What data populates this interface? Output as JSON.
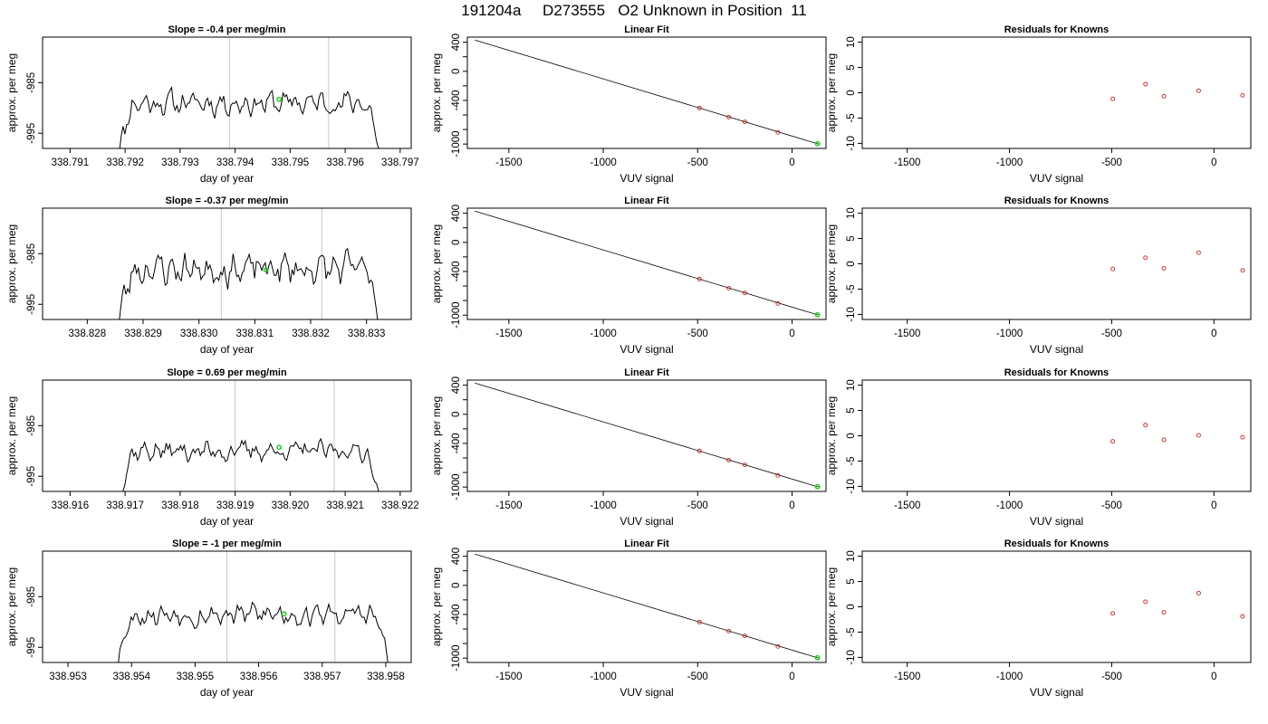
{
  "title": "191204a     D273555   O2 Unknown in Position  11",
  "colors": {
    "trace": "#000000",
    "marker_unknown": "#22cc22",
    "marker_known": "#cc2222",
    "vline": "#c8c8c8",
    "frame": "#000000"
  },
  "chart_data": [
    {
      "type": "line",
      "panel": "time-series",
      "row": 1,
      "title": "Slope =  -0.4  per meg/min",
      "xlabel": "day of year",
      "ylabel": "approx. per meg",
      "xlim": [
        338.7905,
        338.7972
      ],
      "ylim": [
        -998,
        -976
      ],
      "xticks": [
        "338.791",
        "338.792",
        "338.793",
        "338.794",
        "338.795",
        "338.796",
        "338.797"
      ],
      "xtick_values": [
        338.791,
        338.792,
        338.793,
        338.794,
        338.795,
        338.796,
        338.797
      ],
      "yticks": [
        "-985",
        "-995"
      ],
      "ytick_values": [
        -985,
        -995
      ],
      "vlines": [
        338.7939,
        338.7957
      ],
      "start": 338.7918,
      "end": 338.7967,
      "mean": -989.0,
      "amp": 1.6,
      "seed": 11,
      "marker": [
        338.7948,
        -988.3
      ]
    },
    {
      "type": "scatter",
      "panel": "linear-fit",
      "row": 1,
      "title": "Linear Fit",
      "xlabel": "VUV signal",
      "ylabel": "approx. per meg",
      "xlim": [
        -1720,
        180
      ],
      "ylim": [
        -1060,
        470
      ],
      "xticks": [
        "-1500",
        "-1000",
        "-500",
        "0"
      ],
      "xtick_values": [
        -1500,
        -1000,
        -500,
        0
      ],
      "yticks": [
        "400",
        "0",
        "-400",
        "-1000"
      ],
      "ytick_values": [
        400,
        0,
        -400,
        -1000
      ],
      "minor_yticks": [
        200,
        -200,
        -600,
        -800
      ],
      "line": [
        [
          -1680,
          430
        ],
        [
          140,
          -1000
        ]
      ],
      "knowns": [
        [
          -490,
          -505
        ],
        [
          -335,
          -630
        ],
        [
          -250,
          -695
        ],
        [
          -75,
          -840
        ]
      ],
      "unknown": [
        [
          135,
          -995
        ]
      ]
    },
    {
      "type": "scatter",
      "panel": "residuals",
      "row": 1,
      "title": "Residuals for Knowns",
      "xlabel": "VUV signal",
      "ylabel": "approx. per meg",
      "xlim": [
        -1720,
        180
      ],
      "ylim": [
        -11,
        11
      ],
      "xticks": [
        "-1500",
        "-1000",
        "-500",
        "0"
      ],
      "xtick_values": [
        -1500,
        -1000,
        -500,
        0
      ],
      "yticks": [
        "10",
        "5",
        "0",
        "-5",
        "-10"
      ],
      "ytick_values": [
        10,
        5,
        0,
        -5,
        -10
      ],
      "points": [
        [
          -495,
          -1.2
        ],
        [
          -335,
          1.7
        ],
        [
          -245,
          -0.7
        ],
        [
          -75,
          0.4
        ],
        [
          140,
          -0.5
        ]
      ]
    },
    {
      "type": "line",
      "panel": "time-series",
      "row": 2,
      "title": "Slope =  -0.37  per meg/min",
      "xlabel": "day of year",
      "ylabel": "approx. per meg",
      "xlim": [
        338.8272,
        338.8338
      ],
      "ylim": [
        -998,
        -976
      ],
      "xticks": [
        "338.828",
        "338.829",
        "338.830",
        "338.831",
        "338.832",
        "338.833"
      ],
      "xtick_values": [
        338.828,
        338.829,
        338.83,
        338.831,
        338.832,
        338.833
      ],
      "yticks": [
        "-985",
        "-995"
      ],
      "ytick_values": [
        -985,
        -995
      ],
      "vlines": [
        338.8304,
        338.8322
      ],
      "start": 338.8285,
      "end": 338.8333,
      "mean": -988.0,
      "amp": 2.1,
      "seed": 23,
      "marker": [
        338.8312,
        -988.2
      ]
    },
    {
      "type": "scatter",
      "panel": "linear-fit",
      "row": 2,
      "title": "Linear Fit",
      "xlabel": "VUV signal",
      "ylabel": "approx. per meg",
      "xlim": [
        -1720,
        180
      ],
      "ylim": [
        -1060,
        470
      ],
      "xticks": [
        "-1500",
        "-1000",
        "-500",
        "0"
      ],
      "xtick_values": [
        -1500,
        -1000,
        -500,
        0
      ],
      "yticks": [
        "400",
        "0",
        "-400",
        "-1000"
      ],
      "ytick_values": [
        400,
        0,
        -400,
        -1000
      ],
      "minor_yticks": [
        200,
        -200,
        -600,
        -800
      ],
      "line": [
        [
          -1680,
          430
        ],
        [
          140,
          -1000
        ]
      ],
      "knowns": [
        [
          -490,
          -505
        ],
        [
          -335,
          -630
        ],
        [
          -250,
          -695
        ],
        [
          -75,
          -840
        ]
      ],
      "unknown": [
        [
          135,
          -995
        ]
      ]
    },
    {
      "type": "scatter",
      "panel": "residuals",
      "row": 2,
      "title": "Residuals for Knowns",
      "xlabel": "VUV signal",
      "ylabel": "approx. per meg",
      "xlim": [
        -1720,
        180
      ],
      "ylim": [
        -11,
        11
      ],
      "xticks": [
        "-1500",
        "-1000",
        "-500",
        "0"
      ],
      "xtick_values": [
        -1500,
        -1000,
        -500,
        0
      ],
      "yticks": [
        "10",
        "5",
        "0",
        "-5",
        "-10"
      ],
      "ytick_values": [
        10,
        5,
        0,
        -5,
        -10
      ],
      "points": [
        [
          -495,
          -1.0
        ],
        [
          -335,
          1.2
        ],
        [
          -245,
          -0.9
        ],
        [
          -75,
          2.2
        ],
        [
          140,
          -1.3
        ]
      ]
    },
    {
      "type": "line",
      "panel": "time-series",
      "row": 3,
      "title": "Slope =  0.69  per meg/min",
      "xlabel": "day of year",
      "ylabel": "approx. per meg",
      "xlim": [
        338.9155,
        338.9222
      ],
      "ylim": [
        -998,
        -976
      ],
      "xticks": [
        "338.916",
        "338.917",
        "338.918",
        "338.919",
        "338.920",
        "338.921",
        "338.922"
      ],
      "xtick_values": [
        338.916,
        338.917,
        338.918,
        338.919,
        338.92,
        338.921,
        338.922
      ],
      "yticks": [
        "-985",
        "-995"
      ],
      "ytick_values": [
        -985,
        -995
      ],
      "vlines": [
        338.919,
        338.9208
      ],
      "start": 338.9168,
      "end": 338.9217,
      "mean": -990.0,
      "amp": 1.3,
      "seed": 37,
      "marker": [
        338.9198,
        -989.3
      ]
    },
    {
      "type": "scatter",
      "panel": "linear-fit",
      "row": 3,
      "title": "Linear Fit",
      "xlabel": "VUV signal",
      "ylabel": "approx. per meg",
      "xlim": [
        -1720,
        180
      ],
      "ylim": [
        -1060,
        470
      ],
      "xticks": [
        "-1500",
        "-1000",
        "-500",
        "0"
      ],
      "xtick_values": [
        -1500,
        -1000,
        -500,
        0
      ],
      "yticks": [
        "400",
        "0",
        "-400",
        "-1000"
      ],
      "ytick_values": [
        400,
        0,
        -400,
        -1000
      ],
      "minor_yticks": [
        200,
        -200,
        -600,
        -800
      ],
      "line": [
        [
          -1680,
          430
        ],
        [
          140,
          -1000
        ]
      ],
      "knowns": [
        [
          -490,
          -505
        ],
        [
          -335,
          -630
        ],
        [
          -250,
          -695
        ],
        [
          -75,
          -840
        ]
      ],
      "unknown": [
        [
          135,
          -995
        ]
      ]
    },
    {
      "type": "scatter",
      "panel": "residuals",
      "row": 3,
      "title": "Residuals for Knowns",
      "xlabel": "VUV signal",
      "ylabel": "approx. per meg",
      "xlim": [
        -1720,
        180
      ],
      "ylim": [
        -11,
        11
      ],
      "xticks": [
        "-1500",
        "-1000",
        "-500",
        "0"
      ],
      "xtick_values": [
        -1500,
        -1000,
        -500,
        0
      ],
      "yticks": [
        "10",
        "5",
        "0",
        "-5",
        "-10"
      ],
      "ytick_values": [
        10,
        5,
        0,
        -5,
        -10
      ],
      "points": [
        [
          -495,
          -1.1
        ],
        [
          -335,
          2.1
        ],
        [
          -245,
          -0.8
        ],
        [
          -75,
          0.1
        ],
        [
          140,
          -0.3
        ]
      ]
    },
    {
      "type": "line",
      "panel": "time-series",
      "row": 4,
      "title": "Slope =  -1  per meg/min",
      "xlabel": "day of year",
      "ylabel": "approx. per meg",
      "xlim": [
        338.9526,
        338.9584
      ],
      "ylim": [
        -998,
        -976
      ],
      "xticks": [
        "338.953",
        "338.954",
        "338.955",
        "338.956",
        "338.957",
        "338.958"
      ],
      "xtick_values": [
        338.953,
        338.954,
        338.955,
        338.956,
        338.957,
        338.958
      ],
      "yticks": [
        "-985",
        "-995"
      ],
      "ytick_values": [
        -985,
        -995
      ],
      "vlines": [
        338.9555,
        338.9572
      ],
      "start": 338.9537,
      "end": 338.9581,
      "mean": -988.5,
      "amp": 1.5,
      "seed": 53,
      "marker": [
        338.9564,
        -988.4
      ]
    },
    {
      "type": "scatter",
      "panel": "linear-fit",
      "row": 4,
      "title": "Linear Fit",
      "xlabel": "VUV signal",
      "ylabel": "approx. per meg",
      "xlim": [
        -1720,
        180
      ],
      "ylim": [
        -1060,
        470
      ],
      "xticks": [
        "-1500",
        "-1000",
        "-500",
        "0"
      ],
      "xtick_values": [
        -1500,
        -1000,
        -500,
        0
      ],
      "yticks": [
        "400",
        "0",
        "-400",
        "-1000"
      ],
      "ytick_values": [
        400,
        0,
        -400,
        -1000
      ],
      "minor_yticks": [
        200,
        -200,
        -600,
        -800
      ],
      "line": [
        [
          -1680,
          430
        ],
        [
          140,
          -1000
        ]
      ],
      "knowns": [
        [
          -490,
          -505
        ],
        [
          -335,
          -630
        ],
        [
          -250,
          -695
        ],
        [
          -75,
          -840
        ]
      ],
      "unknown": [
        [
          135,
          -995
        ]
      ]
    },
    {
      "type": "scatter",
      "panel": "residuals",
      "row": 4,
      "title": "Residuals for Knowns",
      "xlabel": "VUV signal",
      "ylabel": "approx. per meg",
      "xlim": [
        -1720,
        180
      ],
      "ylim": [
        -11,
        11
      ],
      "xticks": [
        "-1500",
        "-1000",
        "-500",
        "0"
      ],
      "xtick_values": [
        -1500,
        -1000,
        -500,
        0
      ],
      "yticks": [
        "10",
        "5",
        "0",
        "-5",
        "-10"
      ],
      "ytick_values": [
        10,
        5,
        0,
        -5,
        -10
      ],
      "points": [
        [
          -495,
          -1.3
        ],
        [
          -335,
          1.0
        ],
        [
          -245,
          -1.1
        ],
        [
          -75,
          2.7
        ],
        [
          140,
          -1.9
        ]
      ]
    }
  ]
}
